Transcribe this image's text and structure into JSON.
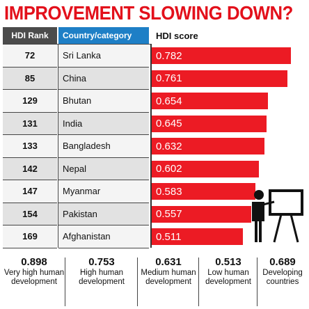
{
  "title": "IMPROVEMENT SLOWING DOWN?",
  "headers": {
    "rank": "HDI Rank",
    "country": "Country/category",
    "score": "HDI score"
  },
  "chart_data": {
    "type": "bar",
    "title": "IMPROVEMENT SLOWING DOWN?",
    "categories": [
      "Sri Lanka",
      "China",
      "Bhutan",
      "India",
      "Bangladesh",
      "Nepal",
      "Myanmar",
      "Pakistan",
      "Afghanistan"
    ],
    "ranks": [
      "72",
      "85",
      "129",
      "131",
      "133",
      "142",
      "147",
      "154",
      "169"
    ],
    "values": [
      0.782,
      0.761,
      0.654,
      0.645,
      0.632,
      0.602,
      0.583,
      0.557,
      0.511
    ],
    "value_labels": [
      "0.782",
      "0.761",
      "0.654",
      "0.645",
      "0.632",
      "0.602",
      "0.583",
      "0.557",
      "0.511"
    ],
    "orientation": "horizontal",
    "xlim": [
      0,
      0.82
    ],
    "bar_color": "#ec1b24"
  },
  "summary": [
    {
      "value": "0.898",
      "label": "Very high human development"
    },
    {
      "value": "0.753",
      "label": "High human development"
    },
    {
      "value": "0.631",
      "label": "Medium human development"
    },
    {
      "value": "0.513",
      "label": "Low human development"
    },
    {
      "value": "0.689",
      "label": "Developing countries"
    }
  ],
  "icon": "presenter-at-board-icon",
  "colors": {
    "title": "#e3101b",
    "rank_header": "#4b4b4b",
    "country_header": "#1e7fc6",
    "bar": "#ec1b24"
  }
}
